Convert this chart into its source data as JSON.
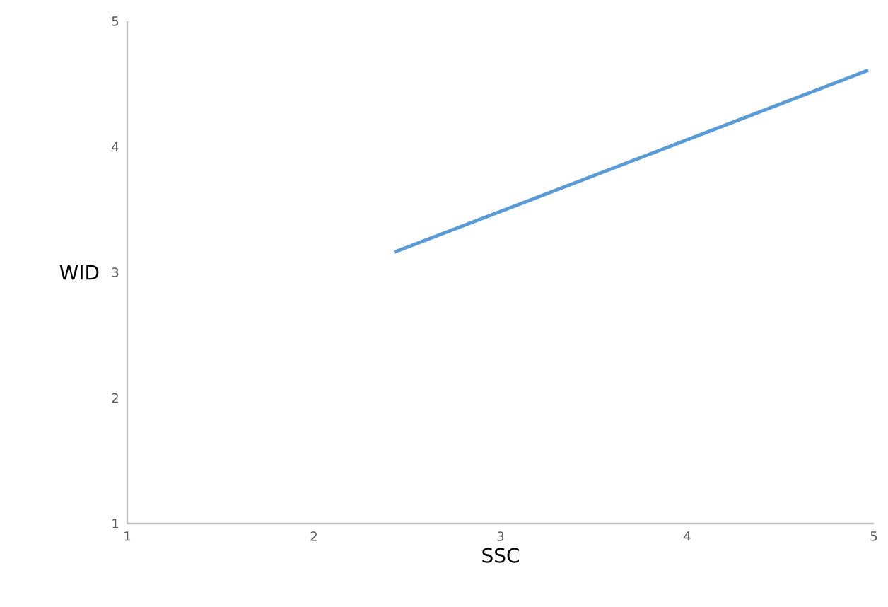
{
  "chart_data": {
    "type": "line",
    "xlabel": "SSC",
    "ylabel": "WID",
    "xlim": [
      1,
      5
    ],
    "xticks": [
      1,
      2,
      3,
      4,
      5
    ],
    "ylim": [
      1,
      5
    ],
    "yticks": [
      1,
      2,
      3,
      4,
      5
    ],
    "grid": false,
    "marker": "none",
    "line_style": "solid",
    "series": [
      {
        "color": "#5b9bd5",
        "x": [
          2.43,
          4.97
        ],
        "values": [
          3.16,
          4.61
        ]
      }
    ]
  }
}
